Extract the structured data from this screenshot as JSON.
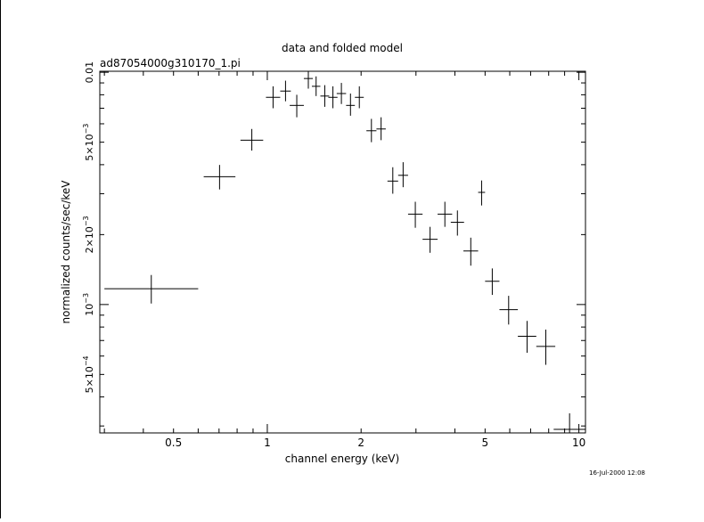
{
  "chart_data": {
    "type": "scatter",
    "title": "data and folded model",
    "subtitle": "ad87054000g310170_1.pi",
    "xlabel": "channel energy (keV)",
    "ylabel": "normalized counts/sec/keV",
    "xscale": "log",
    "yscale": "log",
    "xlim": [
      0.29,
      10.5
    ],
    "ylim": [
      0.00028,
      0.0101
    ],
    "x_ticks": [
      {
        "value": 0.5,
        "label": "0.5"
      },
      {
        "value": 1,
        "label": "1"
      },
      {
        "value": 2,
        "label": "2"
      },
      {
        "value": 5,
        "label": "5"
      },
      {
        "value": 10,
        "label": "10"
      }
    ],
    "y_ticks": [
      {
        "value": 0.0005,
        "label": "5×10",
        "exp": "−4"
      },
      {
        "value": 0.001,
        "label": "10",
        "exp": "−3"
      },
      {
        "value": 0.002,
        "label": "2×10",
        "exp": "−3"
      },
      {
        "value": 0.005,
        "label": "5×10",
        "exp": "−3"
      },
      {
        "value": 0.01,
        "label": "0.01",
        "exp": ""
      }
    ],
    "grid": false,
    "color": "#000000",
    "series": [
      {
        "points": [
          {
            "x0": 0.3,
            "x1": 0.6,
            "y": 0.00117,
            "ylo": 0.00101,
            "yhi": 0.00134
          },
          {
            "x0": 0.625,
            "x1": 0.79,
            "y": 0.00355,
            "ylo": 0.00313,
            "yhi": 0.00399
          },
          {
            "x0": 0.82,
            "x1": 0.97,
            "y": 0.0051,
            "ylo": 0.0046,
            "yhi": 0.0057
          },
          {
            "x0": 0.99,
            "x1": 1.1,
            "y": 0.0078,
            "ylo": 0.007,
            "yhi": 0.0087
          },
          {
            "x0": 1.1,
            "x1": 1.19,
            "y": 0.0083,
            "ylo": 0.0075,
            "yhi": 0.0092
          },
          {
            "x0": 1.18,
            "x1": 1.31,
            "y": 0.0072,
            "ylo": 0.0064,
            "yhi": 0.008
          },
          {
            "x0": 1.31,
            "x1": 1.4,
            "y": 0.0094,
            "ylo": 0.0085,
            "yhi": 0.0101
          },
          {
            "x0": 1.39,
            "x1": 1.48,
            "y": 0.0087,
            "ylo": 0.0079,
            "yhi": 0.0096
          },
          {
            "x0": 1.48,
            "x1": 1.58,
            "y": 0.0079,
            "ylo": 0.0071,
            "yhi": 0.0088
          },
          {
            "x0": 1.57,
            "x1": 1.68,
            "y": 0.0078,
            "ylo": 0.007,
            "yhi": 0.0087
          },
          {
            "x0": 1.67,
            "x1": 1.79,
            "y": 0.0081,
            "ylo": 0.0073,
            "yhi": 0.009
          },
          {
            "x0": 1.79,
            "x1": 1.91,
            "y": 0.0072,
            "ylo": 0.0065,
            "yhi": 0.0081
          },
          {
            "x0": 1.91,
            "x1": 2.04,
            "y": 0.0078,
            "ylo": 0.007,
            "yhi": 0.0087
          },
          {
            "x0": 2.08,
            "x1": 2.24,
            "y": 0.0056,
            "ylo": 0.005,
            "yhi": 0.0063
          },
          {
            "x0": 2.24,
            "x1": 2.4,
            "y": 0.0057,
            "ylo": 0.0051,
            "yhi": 0.0064
          },
          {
            "x0": 2.43,
            "x1": 2.63,
            "y": 0.0034,
            "ylo": 0.003,
            "yhi": 0.0039
          },
          {
            "x0": 2.63,
            "x1": 2.83,
            "y": 0.0036,
            "ylo": 0.0032,
            "yhi": 0.0041
          },
          {
            "x0": 2.83,
            "x1": 3.15,
            "y": 0.00245,
            "ylo": 0.00214,
            "yhi": 0.00277
          },
          {
            "x0": 3.15,
            "x1": 3.52,
            "y": 0.00191,
            "ylo": 0.00167,
            "yhi": 0.00216
          },
          {
            "x0": 3.52,
            "x1": 3.92,
            "y": 0.00245,
            "ylo": 0.00216,
            "yhi": 0.00277
          },
          {
            "x0": 3.88,
            "x1": 4.28,
            "y": 0.00226,
            "ylo": 0.00198,
            "yhi": 0.00254
          },
          {
            "x0": 4.26,
            "x1": 4.75,
            "y": 0.0017,
            "ylo": 0.00147,
            "yhi": 0.00194
          },
          {
            "x0": 4.75,
            "x1": 5.0,
            "y": 0.00304,
            "ylo": 0.00267,
            "yhi": 0.00342
          },
          {
            "x0": 5.0,
            "x1": 5.56,
            "y": 0.00126,
            "ylo": 0.0011,
            "yhi": 0.00143
          },
          {
            "x0": 5.56,
            "x1": 6.37,
            "y": 0.00095,
            "ylo": 0.00082,
            "yhi": 0.00109
          },
          {
            "x0": 6.37,
            "x1": 7.3,
            "y": 0.00073,
            "ylo": 0.00062,
            "yhi": 0.00085
          },
          {
            "x0": 7.3,
            "x1": 8.4,
            "y": 0.00066,
            "ylo": 0.00055,
            "yhi": 0.00078
          },
          {
            "x0": 8.3,
            "x1": 10.5,
            "y": 0.00029,
            "ylo": 0.00028,
            "yhi": 0.00034
          }
        ]
      }
    ]
  },
  "timestamp": "16-Jul-2000 12:08"
}
